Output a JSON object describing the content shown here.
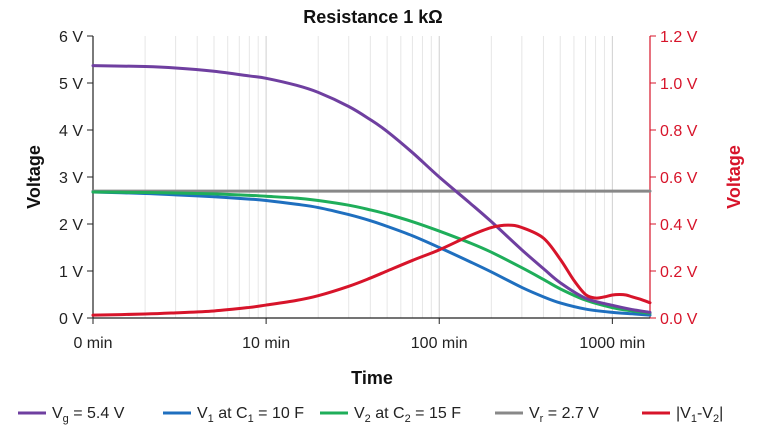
{
  "chart_data": {
    "type": "line",
    "title": "Resistance 1 kΩ",
    "xlabel": "Time",
    "ylabel_left": "Voltage",
    "ylabel_right": "Voltage",
    "x_scale": "log",
    "x_ticks": [
      {
        "value": 1,
        "label": "0 min"
      },
      {
        "value": 10,
        "label": "10 min"
      },
      {
        "value": 100,
        "label": "100 min"
      },
      {
        "value": 1000,
        "label": "1000 min"
      }
    ],
    "xlim": [
      1,
      1650
    ],
    "ylim_left": [
      0,
      6
    ],
    "ylim_right": [
      0,
      1.2
    ],
    "left_ticks": [
      {
        "value": 0,
        "label": "0 V"
      },
      {
        "value": 1,
        "label": "1 V"
      },
      {
        "value": 2,
        "label": "2 V"
      },
      {
        "value": 3,
        "label": "3 V"
      },
      {
        "value": 4,
        "label": "4 V"
      },
      {
        "value": 5,
        "label": "5 V"
      },
      {
        "value": 6,
        "label": "6 V"
      }
    ],
    "right_ticks": [
      {
        "value": 0,
        "label": "0.0 V"
      },
      {
        "value": 0.2,
        "label": "0.2 V"
      },
      {
        "value": 0.4,
        "label": "0.4 V"
      },
      {
        "value": 0.6,
        "label": "0.6 V"
      },
      {
        "value": 0.8,
        "label": "0.8 V"
      },
      {
        "value": 1.0,
        "label": "1.0 V"
      },
      {
        "value": 1.2,
        "label": "1.2 V"
      }
    ],
    "grid": "vertical log minor",
    "legend_position": "bottom",
    "series": [
      {
        "name": "Vg = 5.4 V",
        "legend": {
          "main": "V",
          "sub": "g",
          "rest": " = 5.4 V"
        },
        "axis": "left",
        "color": "#6f3fa0",
        "x": [
          1,
          2,
          3,
          5,
          8,
          10,
          15,
          20,
          30,
          40,
          50,
          70,
          100,
          150,
          200,
          300,
          400,
          500,
          700,
          1000,
          1300,
          1650
        ],
        "y": [
          5.37,
          5.35,
          5.32,
          5.25,
          5.15,
          5.1,
          4.95,
          4.8,
          4.5,
          4.22,
          3.97,
          3.52,
          3.0,
          2.45,
          2.05,
          1.45,
          1.05,
          0.75,
          0.42,
          0.27,
          0.18,
          0.12
        ]
      },
      {
        "name": "V1 at C1 = 10 F",
        "legend": {
          "main": "V",
          "sub": "1",
          "rest": " at C",
          "sub2": "1",
          "rest2": " = 10 F"
        },
        "axis": "left",
        "color": "#1f6fbf",
        "x": [
          1,
          2,
          3,
          5,
          8,
          10,
          15,
          20,
          30,
          40,
          50,
          70,
          100,
          150,
          200,
          300,
          400,
          500,
          700,
          1000,
          1300,
          1650
        ],
        "y": [
          2.68,
          2.65,
          2.62,
          2.58,
          2.53,
          2.5,
          2.42,
          2.35,
          2.2,
          2.07,
          1.95,
          1.75,
          1.5,
          1.2,
          0.98,
          0.65,
          0.45,
          0.32,
          0.19,
          0.12,
          0.09,
          0.06
        ]
      },
      {
        "name": "V2 at C2 = 15 F",
        "legend": {
          "main": "V",
          "sub": "2",
          "rest": " at C",
          "sub2": "2",
          "rest2": " = 15 F"
        },
        "axis": "left",
        "color": "#1fae5a",
        "x": [
          1,
          2,
          3,
          5,
          8,
          10,
          15,
          20,
          30,
          40,
          50,
          70,
          100,
          150,
          200,
          300,
          400,
          500,
          700,
          1000,
          1300,
          1650
        ],
        "y": [
          2.68,
          2.67,
          2.66,
          2.64,
          2.61,
          2.59,
          2.55,
          2.5,
          2.4,
          2.3,
          2.21,
          2.05,
          1.85,
          1.6,
          1.4,
          1.07,
          0.82,
          0.62,
          0.38,
          0.22,
          0.15,
          0.1
        ]
      },
      {
        "name": "Vr = 2.7 V",
        "legend": {
          "main": "V",
          "sub": "r",
          "rest": " = 2.7 V"
        },
        "axis": "left",
        "color": "#888888",
        "x": [
          1,
          1650
        ],
        "y": [
          2.7,
          2.7
        ]
      },
      {
        "name": "|V1-V2|",
        "legend": {
          "main": "|V",
          "sub": "1",
          "rest": "-V",
          "sub2": "2",
          "rest2": "|"
        },
        "axis": "right",
        "color": "#d7142a",
        "x": [
          1,
          2,
          3,
          5,
          8,
          10,
          15,
          20,
          30,
          40,
          50,
          70,
          100,
          150,
          200,
          250,
          300,
          400,
          500,
          600,
          700,
          800,
          900,
          1000,
          1100,
          1200,
          1300,
          1450,
          1650
        ],
        "y": [
          0.012,
          0.017,
          0.022,
          0.03,
          0.045,
          0.055,
          0.075,
          0.095,
          0.135,
          0.17,
          0.2,
          0.245,
          0.29,
          0.35,
          0.385,
          0.395,
          0.385,
          0.34,
          0.25,
          0.16,
          0.1,
          0.085,
          0.09,
          0.098,
          0.1,
          0.098,
          0.09,
          0.08,
          0.065
        ]
      }
    ]
  }
}
